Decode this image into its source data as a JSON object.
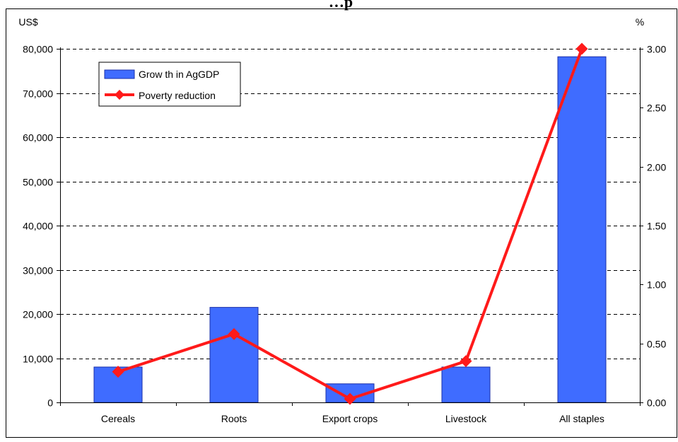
{
  "chart_data": {
    "type": "bar",
    "title": "…p",
    "categories": [
      "Cereals",
      "Roots",
      "Export crops",
      "Livestock",
      "All staples"
    ],
    "series": [
      {
        "name": "Grow th in AgGDP",
        "kind": "bar",
        "axis": "left",
        "values": [
          8000,
          21500,
          4200,
          8000,
          78200
        ]
      },
      {
        "name": "Poverty reduction",
        "kind": "line",
        "axis": "right",
        "values": [
          0.26,
          0.58,
          0.03,
          0.35,
          3.0
        ]
      }
    ],
    "y_left": {
      "unit": "US$",
      "ylim": [
        0,
        80000
      ],
      "ticks": [
        0,
        10000,
        20000,
        30000,
        40000,
        50000,
        60000,
        70000,
        80000
      ],
      "tick_labels": [
        "0",
        "10,000",
        "20,000",
        "30,000",
        "40,000",
        "50,000",
        "60,000",
        "70,000",
        "80,000"
      ]
    },
    "y_right": {
      "unit": "%",
      "ylim": [
        0,
        3.0
      ],
      "ticks": [
        0,
        0.5,
        1.0,
        1.5,
        2.0,
        2.5,
        3.0
      ],
      "tick_labels": [
        "0.00",
        "0.50",
        "1.00",
        "1.50",
        "2.00",
        "2.50",
        "3.00"
      ]
    },
    "grid": true,
    "legend_placement": "top-left",
    "colors": {
      "bar_fill": "#3f6cff",
      "bar_stroke": "#1a2fa8",
      "line": "#ff1a1a",
      "grid": "#000000"
    }
  }
}
